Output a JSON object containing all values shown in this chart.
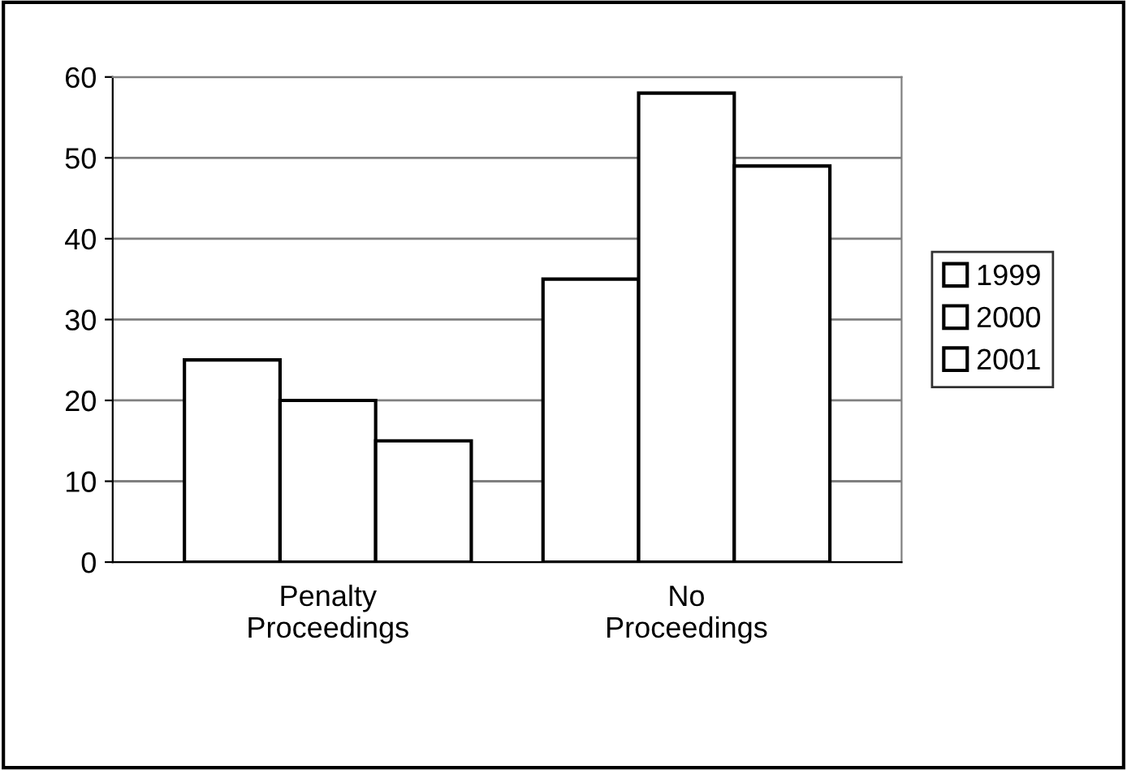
{
  "chart_data": {
    "type": "bar",
    "categories": [
      "Penalty\nProceedings",
      "No\nProceedings"
    ],
    "series": [
      {
        "name": "1999",
        "color": "#ffffff",
        "values": [
          25,
          35
        ]
      },
      {
        "name": "2000",
        "color": "#ffffff",
        "values": [
          20,
          58
        ]
      },
      {
        "name": "2001",
        "color": "#ffffff",
        "values": [
          15,
          49
        ]
      }
    ],
    "ylim": [
      0,
      60
    ],
    "yticks": [
      0,
      10,
      20,
      30,
      40,
      50,
      60
    ],
    "grid": "y",
    "legend": "right"
  }
}
